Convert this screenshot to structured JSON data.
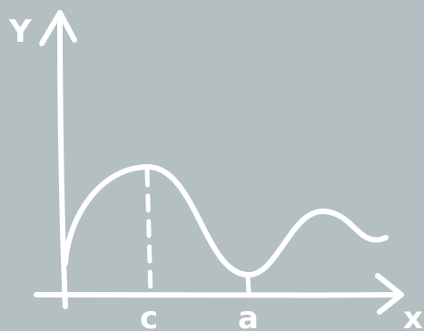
{
  "diagram": {
    "y_axis_label": "Y",
    "x_axis_label": "x",
    "point_c_label": "c",
    "point_a_label": "a",
    "background_color": "#b3bfc0",
    "stroke_color": "#ffffff"
  }
}
